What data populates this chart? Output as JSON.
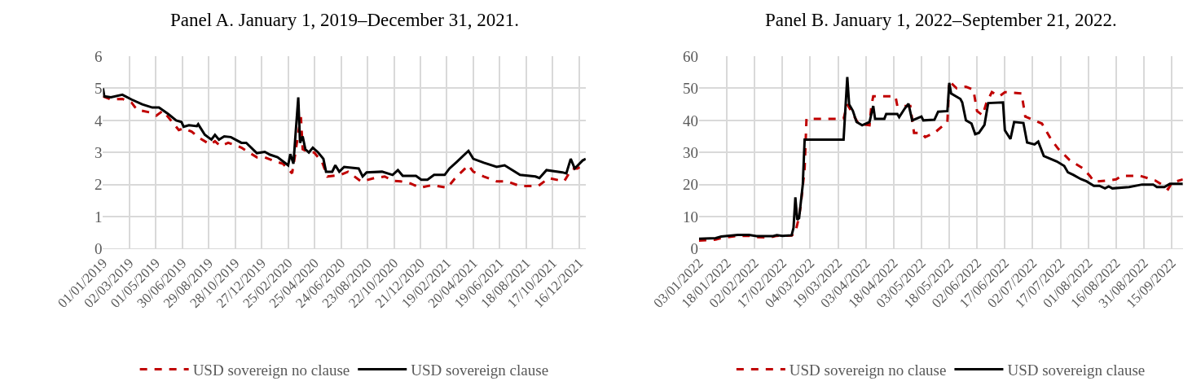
{
  "chart_data": [
    {
      "type": "line",
      "title": "Panel A. January 1, 2019–December 31, 2021.",
      "grid": true,
      "legend": "bottom",
      "xlim": [
        "2019-01-01",
        "2021-12-31"
      ],
      "ylim": [
        0,
        6
      ],
      "yticks": [
        0,
        1,
        2,
        3,
        4,
        5,
        6
      ],
      "xticks": [
        {
          "value": "2019-01-01",
          "label": "01/01/2019"
        },
        {
          "value": "2019-03-02",
          "label": "02/03/2019"
        },
        {
          "value": "2019-05-01",
          "label": "01/05/2019"
        },
        {
          "value": "2019-06-30",
          "label": "30/06/2019"
        },
        {
          "value": "2019-08-29",
          "label": "29/08/2019"
        },
        {
          "value": "2019-10-28",
          "label": "28/10/2019"
        },
        {
          "value": "2019-12-27",
          "label": "27/12/2019"
        },
        {
          "value": "2020-02-25",
          "label": "25/02/2020"
        },
        {
          "value": "2020-04-25",
          "label": "25/04/2020"
        },
        {
          "value": "2020-06-24",
          "label": "24/06/2020"
        },
        {
          "value": "2020-08-23",
          "label": "23/08/2020"
        },
        {
          "value": "2020-10-22",
          "label": "22/10/2020"
        },
        {
          "value": "2020-12-21",
          "label": "21/12/2020"
        },
        {
          "value": "2021-02-19",
          "label": "19/02/2021"
        },
        {
          "value": "2021-04-20",
          "label": "20/04/2021"
        },
        {
          "value": "2021-06-19",
          "label": "19/06/2021"
        },
        {
          "value": "2021-08-18",
          "label": "18/08/2021"
        },
        {
          "value": "2021-10-17",
          "label": "17/10/2021"
        },
        {
          "value": "2021-12-16",
          "label": "16/12/2021"
        }
      ],
      "series": [
        {
          "name": "USD sovereign no clause",
          "color": "#c00000",
          "line_style": "dashed",
          "x": [
            "2019-01-01",
            "2019-01-19",
            "2019-02-14",
            "2019-03-07",
            "2019-03-19",
            "2019-04-17",
            "2019-05-02",
            "2019-05-17",
            "2019-06-04",
            "2019-06-22",
            "2019-07-03",
            "2019-07-21",
            "2019-08-08",
            "2019-09-01",
            "2019-09-12",
            "2019-09-24",
            "2019-10-12",
            "2019-10-30",
            "2019-11-11",
            "2019-11-28",
            "2019-12-16",
            "2020-01-03",
            "2020-01-21",
            "2020-02-13",
            "2020-03-05",
            "2020-03-11",
            "2020-03-20",
            "2020-03-25",
            "2020-03-29",
            "2020-04-12",
            "2020-04-24",
            "2020-05-12",
            "2020-05-24",
            "2020-06-23",
            "2020-07-10",
            "2020-08-09",
            "2020-09-07",
            "2020-10-01",
            "2020-10-19",
            "2020-11-06",
            "2020-11-29",
            "2020-12-20",
            "2021-01-16",
            "2021-02-20",
            "2021-03-10",
            "2021-04-09",
            "2021-04-20",
            "2021-05-14",
            "2021-06-12",
            "2021-07-06",
            "2021-08-04",
            "2021-09-14",
            "2021-10-08",
            "2021-11-12",
            "2021-11-30",
            "2021-12-12",
            "2021-12-31"
          ],
          "values": [
            4.75,
            4.65,
            4.67,
            4.55,
            4.33,
            4.25,
            4.15,
            4.3,
            4.0,
            3.7,
            3.75,
            3.65,
            3.45,
            3.25,
            3.35,
            3.2,
            3.3,
            3.22,
            3.15,
            3.0,
            2.85,
            2.85,
            2.75,
            2.65,
            2.35,
            2.85,
            3.7,
            4.1,
            3.1,
            3.0,
            3.0,
            2.7,
            2.25,
            2.3,
            2.4,
            2.09,
            2.2,
            2.25,
            2.12,
            2.1,
            2.03,
            1.9,
            1.98,
            1.9,
            2.2,
            2.6,
            2.4,
            2.25,
            2.1,
            2.1,
            1.95,
            1.95,
            2.2,
            2.1,
            2.5,
            2.5,
            2.65
          ]
        },
        {
          "name": "USD sovereign clause",
          "color": "#000000",
          "line_style": "solid",
          "x": [
            "2019-01-01",
            "2019-01-04",
            "2019-01-19",
            "2019-02-14",
            "2019-03-07",
            "2019-03-31",
            "2019-04-23",
            "2019-05-08",
            "2019-05-29",
            "2019-06-16",
            "2019-06-28",
            "2019-07-03",
            "2019-07-15",
            "2019-08-02",
            "2019-08-05",
            "2019-08-20",
            "2019-09-04",
            "2019-09-12",
            "2019-09-21",
            "2019-10-03",
            "2019-10-18",
            "2019-11-11",
            "2019-11-22",
            "2019-12-16",
            "2020-01-03",
            "2020-01-15",
            "2020-02-01",
            "2020-02-25",
            "2020-03-01",
            "2020-03-08",
            "2020-03-13",
            "2020-03-19",
            "2020-03-23",
            "2020-03-29",
            "2020-04-04",
            "2020-04-12",
            "2020-04-21",
            "2020-05-03",
            "2020-05-15",
            "2020-05-21",
            "2020-06-04",
            "2020-06-11",
            "2020-06-20",
            "2020-07-01",
            "2020-08-03",
            "2020-08-12",
            "2020-08-21",
            "2020-09-25",
            "2020-10-19",
            "2020-10-31",
            "2020-11-11",
            "2020-12-11",
            "2020-12-23",
            "2021-01-06",
            "2021-01-21",
            "2021-02-14",
            "2021-02-25",
            "2021-03-13",
            "2021-04-09",
            "2021-04-20",
            "2021-05-14",
            "2021-06-12",
            "2021-06-30",
            "2021-08-04",
            "2021-09-08",
            "2021-09-17",
            "2021-10-03",
            "2021-11-08",
            "2021-11-17",
            "2021-11-27",
            "2021-12-06",
            "2021-12-24",
            "2021-12-31"
          ],
          "values": [
            5.0,
            4.75,
            4.72,
            4.8,
            4.65,
            4.5,
            4.4,
            4.4,
            4.2,
            4.0,
            3.95,
            3.8,
            3.85,
            3.82,
            3.88,
            3.55,
            3.4,
            3.55,
            3.4,
            3.5,
            3.48,
            3.3,
            3.3,
            2.98,
            3.02,
            2.93,
            2.85,
            2.6,
            2.95,
            2.65,
            3.6,
            4.72,
            3.3,
            3.5,
            3.1,
            3.0,
            3.15,
            3.0,
            2.8,
            2.4,
            2.4,
            2.6,
            2.4,
            2.55,
            2.5,
            2.25,
            2.38,
            2.4,
            2.3,
            2.45,
            2.27,
            2.27,
            2.15,
            2.15,
            2.3,
            2.3,
            2.5,
            2.7,
            3.05,
            2.8,
            2.68,
            2.55,
            2.6,
            2.3,
            2.25,
            2.2,
            2.45,
            2.38,
            2.35,
            2.8,
            2.5,
            2.75,
            2.8
          ]
        }
      ]
    },
    {
      "type": "line",
      "title": "Panel B. January 1, 2022–September 21, 2022.",
      "grid": true,
      "legend": "bottom",
      "xlim": [
        "2022-01-03",
        "2022-09-21"
      ],
      "ylim": [
        0,
        60
      ],
      "yticks": [
        0,
        10,
        20,
        30,
        40,
        50,
        60
      ],
      "xticks": [
        {
          "value": "2022-01-03",
          "label": "03/01/2022"
        },
        {
          "value": "2022-01-18",
          "label": "18/01/2022"
        },
        {
          "value": "2022-02-02",
          "label": "02/02/2022"
        },
        {
          "value": "2022-02-17",
          "label": "17/02/2022"
        },
        {
          "value": "2022-03-04",
          "label": "04/03/2022"
        },
        {
          "value": "2022-03-19",
          "label": "19/03/2022"
        },
        {
          "value": "2022-04-03",
          "label": "03/04/2022"
        },
        {
          "value": "2022-04-18",
          "label": "18/04/2022"
        },
        {
          "value": "2022-05-03",
          "label": "03/05/2022"
        },
        {
          "value": "2022-05-18",
          "label": "18/05/2022"
        },
        {
          "value": "2022-06-02",
          "label": "02/06/2022"
        },
        {
          "value": "2022-06-17",
          "label": "17/06/2022"
        },
        {
          "value": "2022-07-02",
          "label": "02/07/2022"
        },
        {
          "value": "2022-07-17",
          "label": "17/07/2022"
        },
        {
          "value": "2022-08-01",
          "label": "01/08/2022"
        },
        {
          "value": "2022-08-16",
          "label": "16/08/2022"
        },
        {
          "value": "2022-08-31",
          "label": "31/08/2022"
        },
        {
          "value": "2022-09-15",
          "label": "15/09/2022"
        }
      ],
      "series": [
        {
          "name": "USD sovereign no clause",
          "color": "#c00000",
          "line_style": "dashed",
          "x": [
            "2022-01-03",
            "2022-01-12",
            "2022-01-15",
            "2022-01-24",
            "2022-01-30",
            "2022-02-03",
            "2022-02-10",
            "2022-02-14",
            "2022-02-22",
            "2022-02-24",
            "2022-02-26",
            "2022-02-27",
            "2022-03-01",
            "2022-03-02",
            "2022-03-22",
            "2022-03-24",
            "2022-03-27",
            "2022-03-30",
            "2022-04-05",
            "2022-04-06",
            "2022-04-07",
            "2022-04-19",
            "2022-04-20",
            "2022-04-27",
            "2022-04-29",
            "2022-05-03",
            "2022-05-05",
            "2022-05-10",
            "2022-05-17",
            "2022-05-18",
            "2022-05-22",
            "2022-05-27",
            "2022-05-31",
            "2022-06-02",
            "2022-06-05",
            "2022-06-07",
            "2022-06-10",
            "2022-06-14",
            "2022-06-17",
            "2022-06-26",
            "2022-06-28",
            "2022-07-02",
            "2022-07-07",
            "2022-07-12",
            "2022-07-16",
            "2022-07-22",
            "2022-07-29",
            "2022-08-02",
            "2022-08-04",
            "2022-08-12",
            "2022-08-16",
            "2022-08-19",
            "2022-08-29",
            "2022-09-06",
            "2022-09-09",
            "2022-09-13",
            "2022-09-15",
            "2022-09-21"
          ],
          "values": [
            2.5,
            2.8,
            3.3,
            4.0,
            4.0,
            3.6,
            3.5,
            4.0,
            4.1,
            5,
            10,
            14,
            25,
            40.5,
            40.5,
            45,
            42,
            39,
            38.5,
            44.5,
            47.5,
            47.5,
            44.5,
            44.5,
            36.1,
            36.1,
            34.8,
            36.1,
            39.5,
            52.2,
            50,
            50.5,
            49.6,
            42.9,
            41.6,
            45.4,
            48.8,
            47.5,
            48.8,
            48.4,
            41.2,
            40.2,
            39,
            34,
            31,
            27.6,
            25.1,
            22.6,
            20.9,
            21.3,
            21.6,
            22.7,
            22.7,
            21.3,
            20.2,
            18.5,
            20.5,
            21.6
          ]
        },
        {
          "name": "USD sovereign clause",
          "color": "#000000",
          "line_style": "solid",
          "x": [
            "2022-01-03",
            "2022-01-12",
            "2022-01-15",
            "2022-01-24",
            "2022-01-30",
            "2022-02-03",
            "2022-02-12",
            "2022-02-14",
            "2022-02-17",
            "2022-02-22",
            "2022-02-23",
            "2022-02-24",
            "2022-02-25",
            "2022-02-26",
            "2022-02-28",
            "2022-03-01",
            "2022-03-22",
            "2022-03-24",
            "2022-03-25",
            "2022-03-27",
            "2022-03-29",
            "2022-04-01",
            "2022-04-05",
            "2022-04-07",
            "2022-04-08",
            "2022-04-13",
            "2022-04-14",
            "2022-04-20",
            "2022-04-21",
            "2022-04-24",
            "2022-04-26",
            "2022-04-28",
            "2022-05-03",
            "2022-05-04",
            "2022-05-10",
            "2022-05-12",
            "2022-05-17",
            "2022-05-18",
            "2022-05-19",
            "2022-05-24",
            "2022-05-25",
            "2022-05-27",
            "2022-05-30",
            "2022-06-01",
            "2022-06-03",
            "2022-06-06",
            "2022-06-08",
            "2022-06-16",
            "2022-06-17",
            "2022-06-20",
            "2022-06-22",
            "2022-06-27",
            "2022-06-29",
            "2022-07-03",
            "2022-07-05",
            "2022-07-08",
            "2022-07-15",
            "2022-07-19",
            "2022-07-21",
            "2022-07-24",
            "2022-07-28",
            "2022-07-31",
            "2022-08-04",
            "2022-08-07",
            "2022-08-10",
            "2022-08-12",
            "2022-08-14",
            "2022-08-23",
            "2022-08-30",
            "2022-09-05",
            "2022-09-07",
            "2022-09-11",
            "2022-09-14",
            "2022-09-21"
          ],
          "values": [
            3.1,
            3.3,
            3.8,
            4.3,
            4.3,
            3.9,
            3.9,
            4.2,
            4.0,
            4.2,
            6.5,
            16,
            9,
            9.5,
            20,
            34,
            34,
            53.5,
            45,
            43,
            39.5,
            38.5,
            39.5,
            44.5,
            40.5,
            40.5,
            42,
            42,
            41,
            43.7,
            45.2,
            40,
            41.2,
            40,
            40.2,
            42.7,
            42.9,
            51.7,
            48.4,
            46.7,
            45.6,
            40,
            39,
            35.7,
            36.1,
            38.6,
            45.4,
            45.6,
            36.9,
            34.2,
            39.5,
            39.2,
            33.1,
            32.5,
            33.4,
            28.9,
            27.2,
            25.8,
            23.8,
            23,
            21.7,
            21,
            19.6,
            19.6,
            18.8,
            19.4,
            18.8,
            19.2,
            20,
            20,
            19.2,
            19.2,
            20.2,
            20.2
          ]
        }
      ]
    }
  ]
}
